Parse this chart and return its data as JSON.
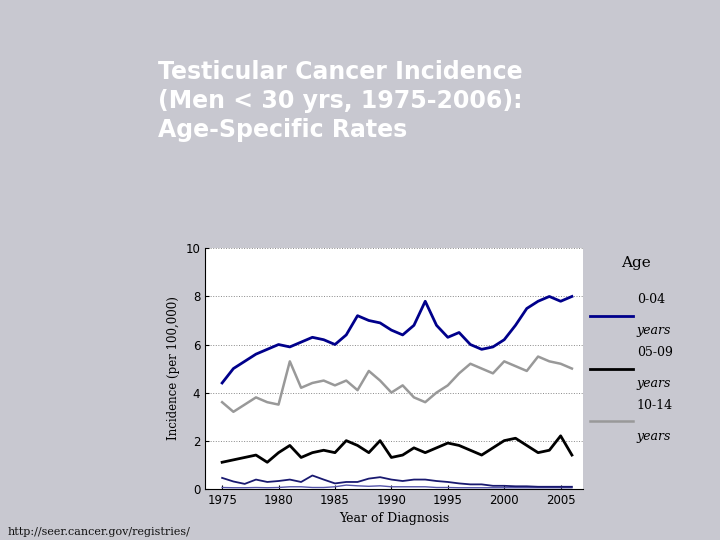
{
  "title_line1": "Testicular Cancer Incidence",
  "title_line2": "(Men < 30 yrs, 1975-2006):",
  "title_line3": "Age-Specific Rates",
  "title_bg": "#8B0000",
  "slide_bg": "#C8C8D0",
  "chart_bg": "#FFFFFF",
  "xlabel": "Year of Diagnosis",
  "ylabel": "Incidence (per 100,000)",
  "years": [
    1975,
    1976,
    1977,
    1978,
    1979,
    1980,
    1981,
    1982,
    1983,
    1984,
    1985,
    1986,
    1987,
    1988,
    1989,
    1990,
    1991,
    1992,
    1993,
    1994,
    1995,
    1996,
    1997,
    1998,
    1999,
    2000,
    2001,
    2002,
    2003,
    2004,
    2005,
    2006
  ],
  "age_0_04": [
    4.4,
    5.0,
    5.3,
    5.6,
    5.8,
    6.0,
    5.9,
    6.1,
    6.3,
    6.2,
    6.0,
    6.4,
    7.2,
    7.0,
    6.9,
    6.6,
    6.4,
    6.8,
    7.8,
    6.8,
    6.3,
    6.5,
    6.0,
    5.8,
    5.9,
    6.2,
    6.8,
    7.5,
    7.8,
    8.0,
    7.8,
    8.0
  ],
  "age_05_09": [
    3.6,
    3.2,
    3.5,
    3.8,
    3.6,
    3.5,
    5.3,
    4.2,
    4.4,
    4.5,
    4.3,
    4.5,
    4.1,
    4.9,
    4.5,
    4.0,
    4.3,
    3.8,
    3.6,
    4.0,
    4.3,
    4.8,
    5.2,
    5.0,
    4.8,
    5.3,
    5.1,
    4.9,
    5.5,
    5.3,
    5.2,
    5.0
  ],
  "age_10_14": [
    1.1,
    1.2,
    1.3,
    1.4,
    1.1,
    1.5,
    1.8,
    1.3,
    1.5,
    1.6,
    1.5,
    2.0,
    1.8,
    1.5,
    2.0,
    1.3,
    1.4,
    1.7,
    1.5,
    1.7,
    1.9,
    1.8,
    1.6,
    1.4,
    1.7,
    2.0,
    2.1,
    1.8,
    1.5,
    1.6,
    2.2,
    1.4
  ],
  "age_near0_a": [
    0.45,
    0.3,
    0.2,
    0.38,
    0.28,
    0.32,
    0.38,
    0.28,
    0.55,
    0.38,
    0.22,
    0.28,
    0.28,
    0.42,
    0.48,
    0.38,
    0.32,
    0.38,
    0.38,
    0.32,
    0.28,
    0.22,
    0.18,
    0.18,
    0.12,
    0.12,
    0.1,
    0.1,
    0.08,
    0.08,
    0.08,
    0.08
  ],
  "age_near0_b": [
    0.05,
    0.04,
    0.04,
    0.05,
    0.04,
    0.05,
    0.08,
    0.08,
    0.05,
    0.05,
    0.08,
    0.15,
    0.12,
    0.1,
    0.12,
    0.08,
    0.08,
    0.08,
    0.08,
    0.05,
    0.05,
    0.04,
    0.04,
    0.04,
    0.04,
    0.04,
    0.04,
    0.04,
    0.04,
    0.04,
    0.04,
    0.04
  ],
  "color_0_04": "#00008B",
  "color_05_09": "#000000",
  "color_10_14": "#999999",
  "color_near0_a": "#191970",
  "color_near0_b": "#5555AA",
  "ylim": [
    0,
    10
  ],
  "yticks": [
    0,
    2,
    4,
    6,
    8,
    10
  ],
  "xticks": [
    1975,
    1980,
    1985,
    1990,
    1995,
    2000,
    2005
  ],
  "footnote": "http://seer.cancer.gov/registries/",
  "legend_title": "Age"
}
